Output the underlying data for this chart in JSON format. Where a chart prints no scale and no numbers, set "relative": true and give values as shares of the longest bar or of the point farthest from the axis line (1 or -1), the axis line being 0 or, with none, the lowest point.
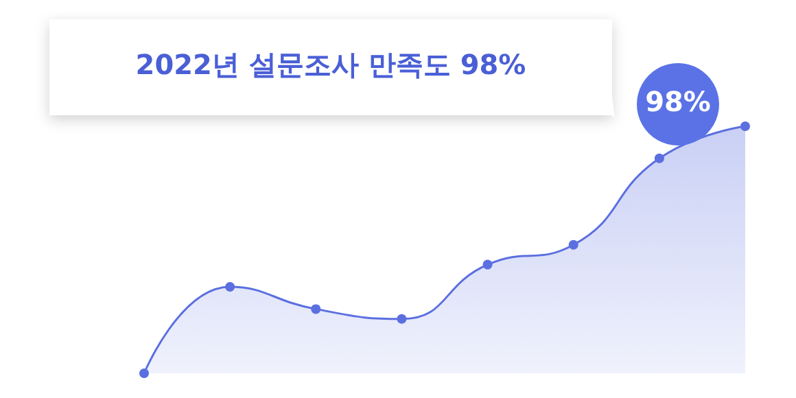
{
  "chart_data": {
    "type": "area",
    "relative": true,
    "categories": [
      null,
      null,
      null,
      null,
      null,
      null,
      null,
      null
    ],
    "series": [
      {
        "color": "#5b6fe0",
        "values": [
          0,
          0.35,
          0.26,
          0.22,
          0.44,
          0.52,
          0.87,
          1
        ]
      }
    ],
    "marker": "circle",
    "line_style": "solid",
    "annotations": [
      "2022년 설문조사 만족도 98%",
      "98%"
    ]
  }
}
